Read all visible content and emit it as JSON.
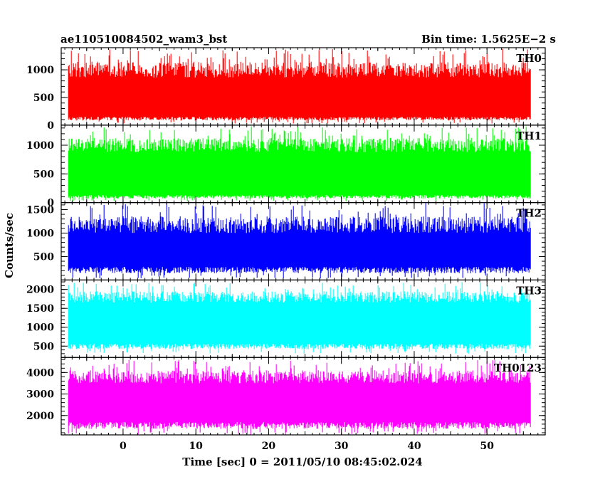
{
  "header": {
    "title": "ae110510084502_wam3_bst",
    "bin_time": "Bin time: 1.5625E−2 s"
  },
  "chart_data": {
    "type": "line",
    "xlabel": "Time [sec] 0 = 2011/05/10 08:45:02.024",
    "ylabel": "Counts/sec",
    "xlim": [
      -8.5,
      58
    ],
    "data_x_range": [
      -7.5,
      56
    ],
    "x_ticks": [
      0,
      10,
      20,
      30,
      40,
      50
    ],
    "grid": false,
    "panels": [
      {
        "name": "TH0",
        "color": "#ff0000",
        "ylim": [
          0,
          1400
        ],
        "y_ticks": [
          0,
          500,
          1000
        ],
        "base_min": 150,
        "base_max": 860,
        "dip": 30,
        "spike": 1380
      },
      {
        "name": "TH1",
        "color": "#00ff00",
        "ylim": [
          0,
          1350
        ],
        "y_ticks": [
          0,
          500,
          1000
        ],
        "base_min": 130,
        "base_max": 880,
        "dip": 20,
        "spike": 1330
      },
      {
        "name": "TH2",
        "color": "#0000ff",
        "ylim": [
          0,
          1650
        ],
        "y_ticks": [
          500,
          1000,
          1500
        ],
        "base_min": 280,
        "base_max": 1000,
        "dip": 30,
        "spike": 1650
      },
      {
        "name": "TH3",
        "color": "#00ffff",
        "ylim": [
          200,
          2250
        ],
        "y_ticks": [
          500,
          1000,
          1500,
          2000
        ],
        "base_min": 560,
        "base_max": 1650,
        "dip": 300,
        "spike": 2200
      },
      {
        "name": "TH0123",
        "color": "#ff00ff",
        "ylim": [
          1100,
          4700
        ],
        "y_ticks": [
          2000,
          3000,
          4000
        ],
        "base_min": 1700,
        "base_max": 3500,
        "dip": 1100,
        "spike": 4600
      }
    ]
  }
}
